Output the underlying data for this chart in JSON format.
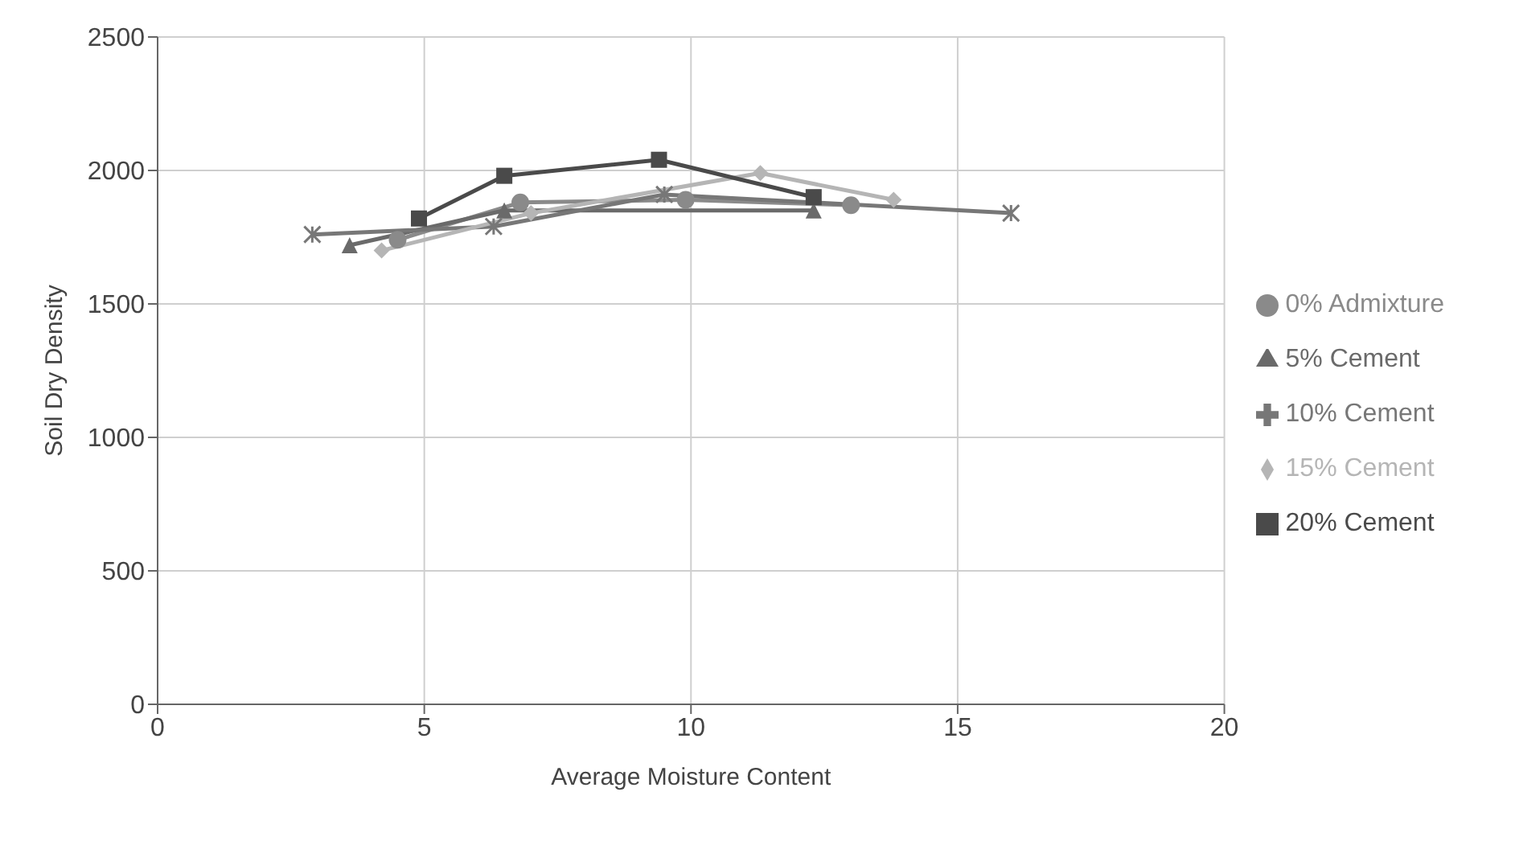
{
  "chart_data": {
    "type": "line",
    "xlabel": "Average Moisture Content",
    "ylabel": "Soil Dry Density",
    "xlim": [
      0,
      20
    ],
    "xticks": [
      0,
      5,
      10,
      15,
      20
    ],
    "ylim": [
      0,
      2500
    ],
    "yticks": [
      0,
      500,
      1000,
      1500,
      2000,
      2500
    ],
    "grid": true,
    "legend": "right",
    "series": [
      {
        "name": "0% Admixture",
        "color": "#8a8a8a",
        "marker": "circle",
        "x": [
          4.5,
          6.8,
          9.9,
          13
        ],
        "values": [
          1740,
          1880,
          1890,
          1870
        ]
      },
      {
        "name": "5% Cement",
        "color": "#6a6a6a",
        "marker": "triangle",
        "x": [
          3.6,
          6.5,
          12.3
        ],
        "values": [
          1720,
          1850,
          1850
        ]
      },
      {
        "name": "10% Cement",
        "color": "#777777",
        "marker": "cross",
        "x": [
          2.9,
          6.3,
          9.5,
          16
        ],
        "values": [
          1760,
          1790,
          1910,
          1840
        ]
      },
      {
        "name": "15% Cement",
        "color": "#b5b5b5",
        "marker": "diamond",
        "x": [
          4.2,
          7,
          11.3,
          13.8
        ],
        "values": [
          1700,
          1840,
          1990,
          1890
        ]
      },
      {
        "name": "20% Cement",
        "color": "#4a4a4a",
        "marker": "square",
        "x": [
          4.9,
          6.5,
          9.4,
          12.3
        ],
        "values": [
          1820,
          1980,
          2040,
          1900
        ]
      }
    ]
  }
}
